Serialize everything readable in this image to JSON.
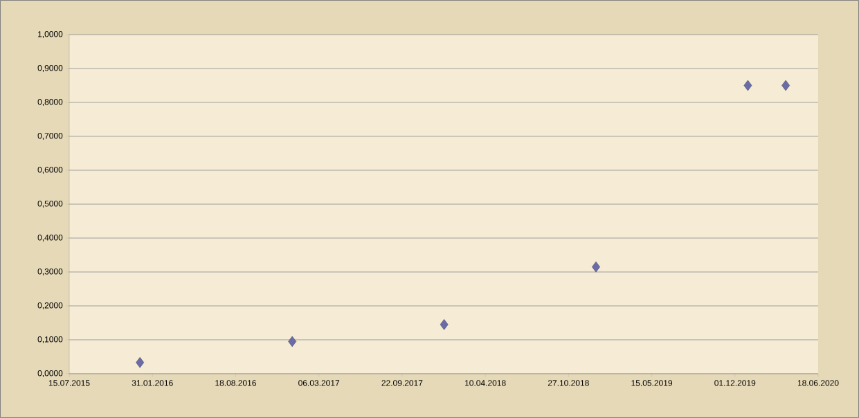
{
  "chart_data": {
    "type": "scatter",
    "x": [
      "2016-01-01",
      "2017-01-01",
      "2018-01-01",
      "2019-01-01",
      "2020-01-01",
      "2020-04-01"
    ],
    "series": [
      {
        "color": "#6b6ba6",
        "values": [
          0.033,
          0.095,
          0.145,
          0.315,
          0.85,
          0.85
        ]
      }
    ],
    "marker": "diamond",
    "grid": "y",
    "xlim": [
      "2015-07-15",
      "2020-06-18"
    ],
    "xticks": [
      {
        "value": "2015-07-15",
        "label": "15.07.2015"
      },
      {
        "value": "2016-01-31",
        "label": "31.01.2016"
      },
      {
        "value": "2016-08-18",
        "label": "18.08.2016"
      },
      {
        "value": "2017-03-06",
        "label": "06.03.2017"
      },
      {
        "value": "2017-09-22",
        "label": "22.09.2017"
      },
      {
        "value": "2018-04-10",
        "label": "10.04.2018"
      },
      {
        "value": "2018-10-27",
        "label": "27.10.2018"
      },
      {
        "value": "2019-05-15",
        "label": "15.05.2019"
      },
      {
        "value": "2019-12-01",
        "label": "01.12.2019"
      },
      {
        "value": "2020-06-18",
        "label": "18.06.2020"
      }
    ],
    "ylim": [
      0,
      1
    ],
    "yticks": [
      {
        "value": 0,
        "label": "0,0000"
      },
      {
        "value": 0.1,
        "label": "0,1000"
      },
      {
        "value": 0.2,
        "label": "0,2000"
      },
      {
        "value": 0.3,
        "label": "0,3000"
      },
      {
        "value": 0.4,
        "label": "0,4000"
      },
      {
        "value": 0.5,
        "label": "0,5000"
      },
      {
        "value": 0.6,
        "label": "0,6000"
      },
      {
        "value": 0.7,
        "label": "0,7000"
      },
      {
        "value": 0.8,
        "label": "0,8000"
      },
      {
        "value": 0.9,
        "label": "0,9000"
      },
      {
        "value": 1,
        "label": "1,0000"
      }
    ]
  }
}
